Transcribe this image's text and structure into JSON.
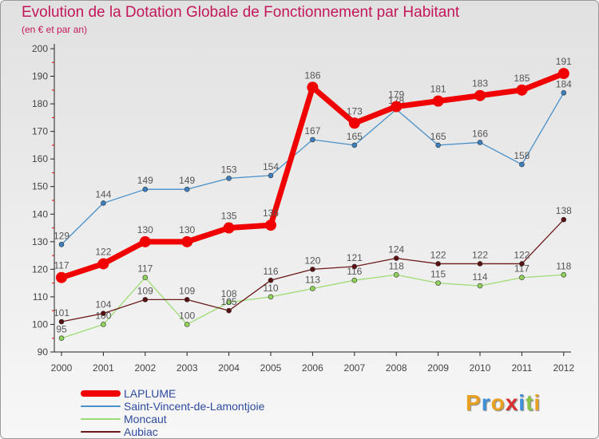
{
  "title": "Evolution de la Dotation Globale de Fonctionnement par Habitant",
  "subtitle": "(en € et par an)",
  "logo_text": "Proxiti",
  "chart_data": {
    "type": "line",
    "title": "Evolution de la Dotation Globale de Fonctionnement par Habitant",
    "subtitle": "(en € et par an)",
    "xlabel": "",
    "ylabel": "",
    "ylim": [
      90,
      200
    ],
    "yticks": [
      90,
      100,
      110,
      120,
      130,
      140,
      150,
      160,
      170,
      180,
      190,
      200
    ],
    "grid": false,
    "legend_position": "bottom-left",
    "categories": [
      "2000",
      "2001",
      "2002",
      "2003",
      "2004",
      "2005",
      "2006",
      "2007",
      "2008",
      "2009",
      "2010",
      "2011",
      "2012"
    ],
    "series": [
      {
        "name": "Saint-Vincent-de-Lamontjoie",
        "color": "#4a90c8",
        "marker": "#3b7fc0",
        "values": [
          129,
          144,
          149,
          149,
          153,
          154,
          167,
          165,
          178,
          165,
          166,
          158,
          184
        ]
      },
      {
        "name": "Moncaut",
        "color": "#9ddc74",
        "marker": "#8fd35a",
        "values": [
          95,
          100,
          117,
          100,
          108,
          110,
          113,
          116,
          118,
          115,
          114,
          117,
          118
        ]
      },
      {
        "name": "Aubiac",
        "color": "#6b1a1a",
        "marker": "#5a1010",
        "values": [
          101,
          104,
          109,
          109,
          105,
          116,
          120,
          121,
          124,
          122,
          122,
          122,
          138
        ]
      },
      {
        "name": "LAPLUME",
        "color": "#f00000",
        "marker": "#f00000",
        "bold": true,
        "values": [
          117,
          122,
          130,
          130,
          135,
          136,
          186,
          173,
          179,
          181,
          183,
          185,
          191
        ]
      }
    ],
    "legend_order": [
      "LAPLUME",
      "Saint-Vincent-de-Lamontjoie",
      "Moncaut",
      "Aubiac"
    ]
  }
}
